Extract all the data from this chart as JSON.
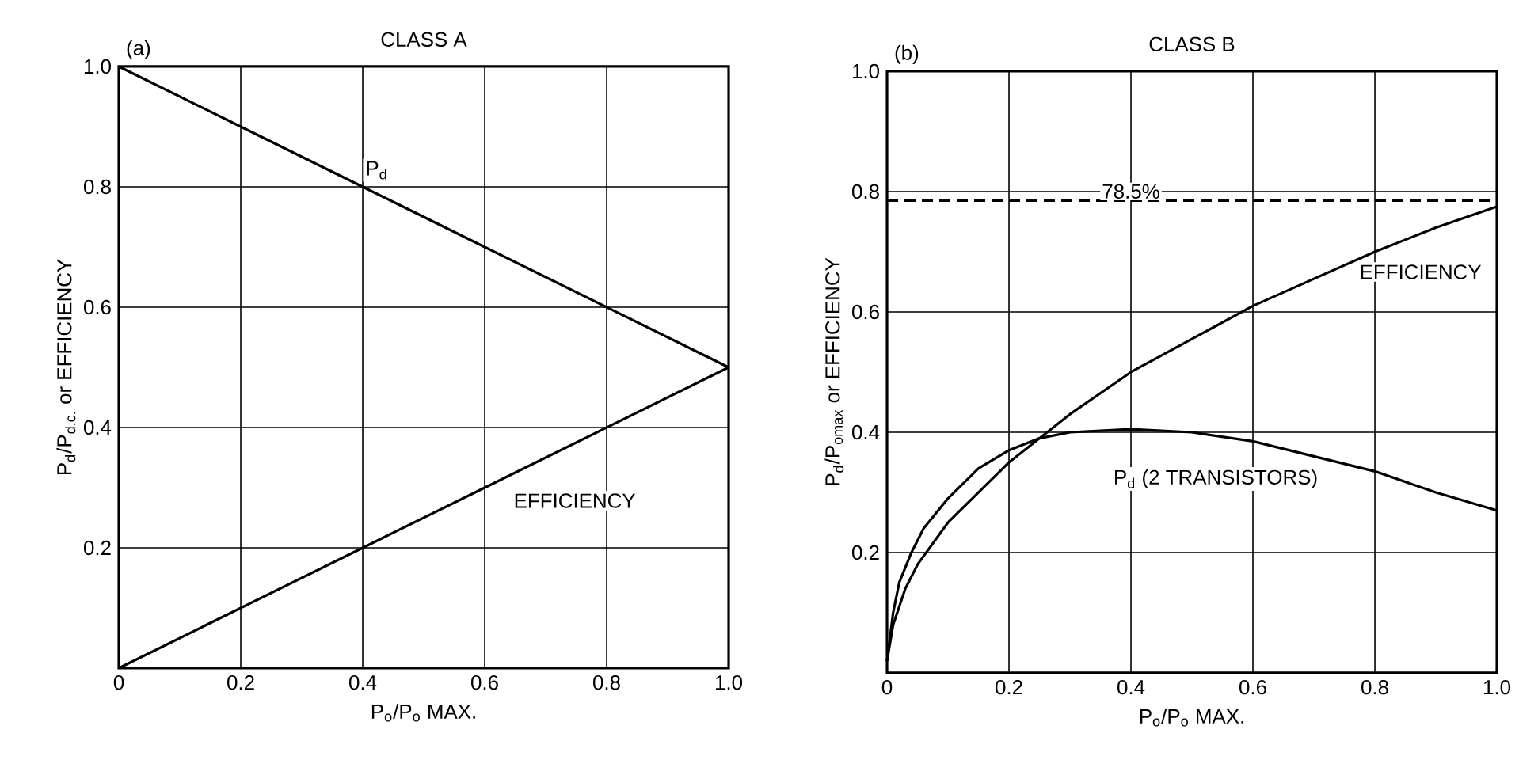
{
  "chart_data": [
    {
      "type": "line",
      "title": "CLASS A",
      "xlabel": "P$_{o}$/P$_{o}$ MAX.",
      "ylabel": "P$_{d}$/P$_{d.c.}$ or EFFICIENCY",
      "annotations": [
        "(a)"
      ],
      "x": [
        0,
        0.2,
        0.4,
        0.6,
        0.8,
        1.0
      ],
      "series": [
        {
          "name": "P$_{d}$",
          "color": "#000000",
          "values": [
            1.0,
            0.9,
            0.8,
            0.7,
            0.6,
            0.5
          ]
        },
        {
          "name": "EFFICIENCY",
          "color": "#000000",
          "values": [
            0,
            0.1,
            0.2,
            0.3,
            0.4,
            0.5
          ]
        }
      ],
      "xlim": [
        0,
        1.0
      ],
      "ylim": [
        0,
        1.0
      ],
      "xticks": [
        0,
        0.2,
        0.4,
        0.6,
        0.8,
        {
          "value": 1.0,
          "label": "1.0"
        }
      ],
      "yticks": [
        0.2,
        0.4,
        0.6,
        0.8,
        {
          "value": 1.0,
          "label": "1.0"
        }
      ],
      "grid": true,
      "line_style": "solid"
    },
    {
      "type": "line",
      "title": "CLASS B",
      "xlabel": "P$_{o}$/P$_{o}$ MAX.",
      "ylabel": "P$_{d}$/P$_{omax}$ or EFFICIENCY",
      "annotations": [
        "(b)"
      ],
      "series": [
        {
          "name": "EFFICIENCY",
          "color": "#000000",
          "x": [
            0,
            0.01,
            0.03,
            0.05,
            0.1,
            0.15,
            0.2,
            0.3,
            0.4,
            0.5,
            0.6,
            0.7,
            0.8,
            0.9,
            1.0
          ],
          "values": [
            0.02,
            0.08,
            0.14,
            0.18,
            0.25,
            0.3,
            0.35,
            0.43,
            0.5,
            0.555,
            0.61,
            0.655,
            0.7,
            0.74,
            0.775
          ]
        },
        {
          "name": "P$_{d}$ (2 TRANSISTORS)",
          "color": "#000000",
          "x": [
            0,
            0.01,
            0.02,
            0.04,
            0.06,
            0.1,
            0.15,
            0.2,
            0.25,
            0.3,
            0.4,
            0.5,
            0.6,
            0.7,
            0.8,
            0.9,
            1.0
          ],
          "values": [
            0.02,
            0.1,
            0.15,
            0.2,
            0.24,
            0.29,
            0.34,
            0.37,
            0.39,
            0.4,
            0.405,
            0.4,
            0.385,
            0.36,
            0.335,
            0.3,
            0.27
          ]
        }
      ],
      "ref_lines": [
        {
          "axis": "y",
          "value": 0.785,
          "label": "78.5%",
          "line_style": "dashed",
          "color": "#000000"
        }
      ],
      "xlim": [
        0,
        1.0
      ],
      "ylim": [
        0,
        1.0
      ],
      "xticks": [
        0,
        0.2,
        0.4,
        0.6,
        0.8,
        {
          "value": 1.0,
          "label": "1.0"
        }
      ],
      "yticks": [
        0.2,
        0.4,
        0.6,
        0.8,
        {
          "value": 1.0,
          "label": "1.0"
        }
      ],
      "grid": true,
      "line_style": "solid"
    }
  ]
}
